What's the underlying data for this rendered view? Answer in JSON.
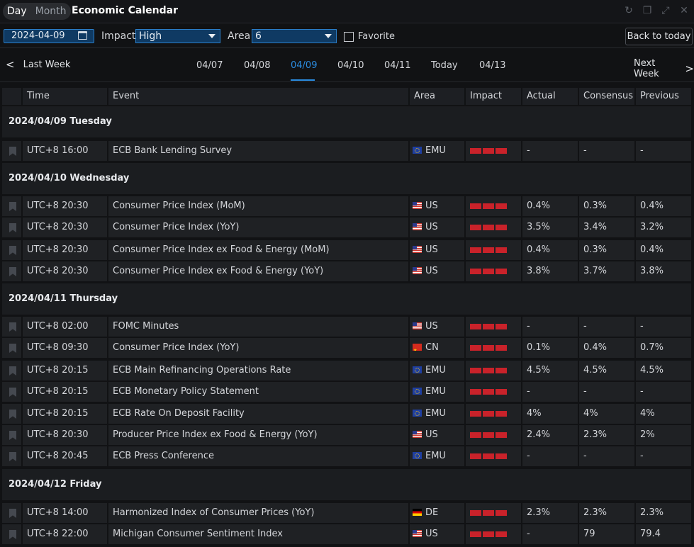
{
  "titlebar": {
    "seg_day": "Day",
    "seg_month": "Month",
    "title": "Economic Calendar",
    "icons": [
      "refresh-icon",
      "restore-icon",
      "expand-icon",
      "close-icon"
    ]
  },
  "toolbar": {
    "date_value": "2024-04-09",
    "impact_label": "Impact",
    "impact_value": "High",
    "area_label": "Area",
    "area_value": "6",
    "favorite_label": "Favorite",
    "back_to_today": "Back to today"
  },
  "weeknav": {
    "prev": "Last Week",
    "next": "Next Week",
    "days": [
      "04/07",
      "04/08",
      "04/09",
      "04/10",
      "04/11",
      "Today",
      "04/13"
    ],
    "active_day": "04/09"
  },
  "table": {
    "headers": [
      "Time",
      "Event",
      "Area",
      "Impact",
      "Actual",
      "Consensus",
      "Previous"
    ]
  },
  "sections": [
    {
      "date": "2024/04/09 Tuesday",
      "rows": [
        {
          "time": "UTC+8 16:00",
          "event": "ECB Bank Lending Survey",
          "flag": "eu",
          "area": "EMU",
          "actual": "-",
          "consensus": "-",
          "previous": "-"
        }
      ]
    },
    {
      "date": "2024/04/10 Wednesday",
      "rows": [
        {
          "time": "UTC+8 20:30",
          "event": "Consumer Price Index (MoM)",
          "flag": "us",
          "area": "US",
          "actual": "0.4%",
          "consensus": "0.3%",
          "previous": "0.4%"
        },
        {
          "time": "UTC+8 20:30",
          "event": "Consumer Price Index (YoY)",
          "flag": "us",
          "area": "US",
          "actual": "3.5%",
          "consensus": "3.4%",
          "previous": "3.2%"
        },
        {
          "time": "UTC+8 20:30",
          "event": "Consumer Price Index ex Food & Energy (MoM)",
          "flag": "us",
          "area": "US",
          "actual": "0.4%",
          "consensus": "0.3%",
          "previous": "0.4%"
        },
        {
          "time": "UTC+8 20:30",
          "event": "Consumer Price Index ex Food & Energy (YoY)",
          "flag": "us",
          "area": "US",
          "actual": "3.8%",
          "consensus": "3.7%",
          "previous": "3.8%"
        }
      ]
    },
    {
      "date": "2024/04/11 Thursday",
      "rows": [
        {
          "time": "UTC+8 02:00",
          "event": "FOMC Minutes",
          "flag": "us",
          "area": "US",
          "actual": "-",
          "consensus": "-",
          "previous": "-"
        },
        {
          "time": "UTC+8 09:30",
          "event": "Consumer Price Index (YoY)",
          "flag": "cn",
          "area": "CN",
          "actual": "0.1%",
          "consensus": "0.4%",
          "previous": "0.7%"
        },
        {
          "time": "UTC+8 20:15",
          "event": "ECB Main Refinancing Operations Rate",
          "flag": "eu",
          "area": "EMU",
          "actual": "4.5%",
          "consensus": "4.5%",
          "previous": "4.5%"
        },
        {
          "time": "UTC+8 20:15",
          "event": "ECB Monetary Policy Statement",
          "flag": "eu",
          "area": "EMU",
          "actual": "-",
          "consensus": "-",
          "previous": "-"
        },
        {
          "time": "UTC+8 20:15",
          "event": "ECB Rate On Deposit Facility",
          "flag": "eu",
          "area": "EMU",
          "actual": "4%",
          "consensus": "4%",
          "previous": "4%"
        },
        {
          "time": "UTC+8 20:30",
          "event": "Producer Price Index ex Food & Energy (YoY)",
          "flag": "us",
          "area": "US",
          "actual": "2.4%",
          "consensus": "2.3%",
          "previous": "2%"
        },
        {
          "time": "UTC+8 20:45",
          "event": "ECB Press Conference",
          "flag": "eu",
          "area": "EMU",
          "actual": "-",
          "consensus": "-",
          "previous": "-"
        }
      ]
    },
    {
      "date": "2024/04/12 Friday",
      "rows": [
        {
          "time": "UTC+8 14:00",
          "event": "Harmonized Index of Consumer Prices (YoY)",
          "flag": "de",
          "area": "DE",
          "actual": "2.3%",
          "consensus": "2.3%",
          "previous": "2.3%"
        },
        {
          "time": "UTC+8 22:00",
          "event": "Michigan Consumer Sentiment Index",
          "flag": "us",
          "area": "US",
          "actual": "-",
          "consensus": "79",
          "previous": "79.4"
        }
      ]
    }
  ],
  "impact_level": 3,
  "colors": {
    "accent": "#2b8ce0",
    "impact_bar": "#c9222a",
    "background": "#111214"
  }
}
